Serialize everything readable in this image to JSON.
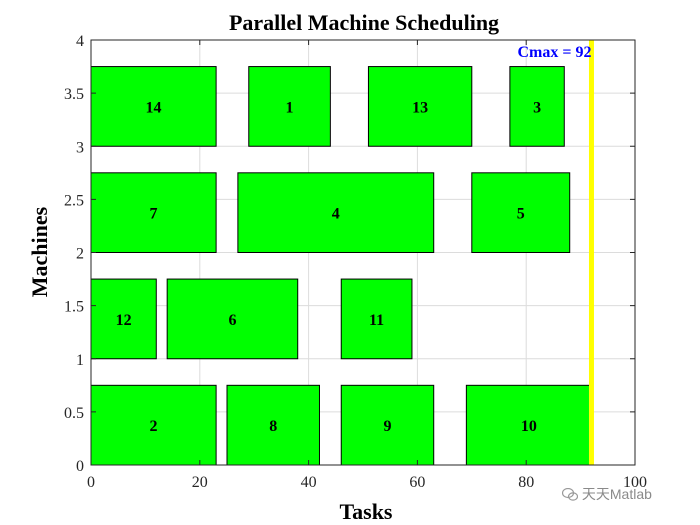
{
  "chart_data": {
    "type": "gantt",
    "title": "Parallel Machine Scheduling",
    "xlabel": "Tasks",
    "ylabel": "Machines",
    "xlim": [
      0,
      100
    ],
    "ylim": [
      0,
      4
    ],
    "xticks": [
      "0",
      "20",
      "40",
      "60",
      "80",
      "100"
    ],
    "yticks": [
      "0",
      "0.5",
      "1",
      "1.5",
      "2",
      "2.5",
      "3",
      "3.5",
      "4"
    ],
    "grid": true,
    "bar_color": "#00ff00",
    "tasks": [
      {
        "label": "2",
        "start": 0,
        "end": 23,
        "y0": 0,
        "y1": 0.75
      },
      {
        "label": "8",
        "start": 25,
        "end": 42,
        "y0": 0,
        "y1": 0.75
      },
      {
        "label": "9",
        "start": 46,
        "end": 63,
        "y0": 0,
        "y1": 0.75
      },
      {
        "label": "10",
        "start": 69,
        "end": 92,
        "y0": 0,
        "y1": 0.75
      },
      {
        "label": "12",
        "start": 0,
        "end": 12,
        "y0": 1,
        "y1": 1.75
      },
      {
        "label": "6",
        "start": 14,
        "end": 38,
        "y0": 1,
        "y1": 1.75
      },
      {
        "label": "11",
        "start": 46,
        "end": 59,
        "y0": 1,
        "y1": 1.75
      },
      {
        "label": "7",
        "start": 0,
        "end": 23,
        "y0": 2,
        "y1": 2.75
      },
      {
        "label": "4",
        "start": 27,
        "end": 63,
        "y0": 2,
        "y1": 2.75
      },
      {
        "label": "5",
        "start": 70,
        "end": 88,
        "y0": 2,
        "y1": 2.75
      },
      {
        "label": "14",
        "start": 0,
        "end": 23,
        "y0": 3,
        "y1": 3.75
      },
      {
        "label": "1",
        "start": 29,
        "end": 44,
        "y0": 3,
        "y1": 3.75
      },
      {
        "label": "13",
        "start": 51,
        "end": 70,
        "y0": 3,
        "y1": 3.75
      },
      {
        "label": "3",
        "start": 77,
        "end": 87,
        "y0": 3,
        "y1": 3.75
      }
    ],
    "cmax": {
      "value": 92,
      "label": "Cmax = 92",
      "line_color": "#ffff00",
      "text_color": "#0000ff"
    }
  },
  "watermark": {
    "text": "天天Matlab",
    "icon": "wechat-icon"
  }
}
